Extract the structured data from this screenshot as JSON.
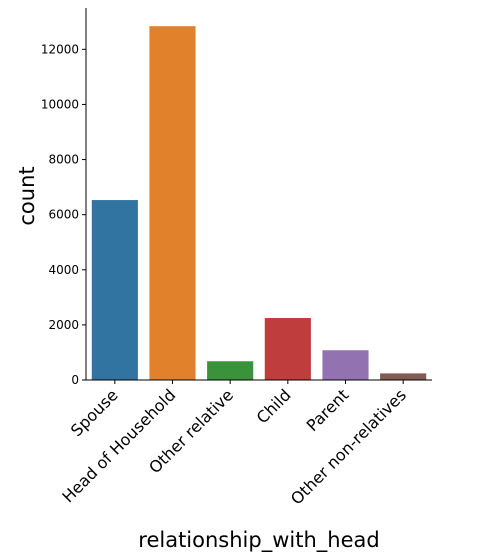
{
  "chart_data": {
    "type": "bar",
    "categories": [
      "Spouse",
      "Head of Household",
      "Other relative",
      "Child",
      "Parent",
      "Other non-relatives"
    ],
    "values": [
      6530,
      12840,
      680,
      2250,
      1080,
      240
    ],
    "colors": [
      "#3274a1",
      "#e1812c",
      "#3a923a",
      "#c03d3e",
      "#9372b2",
      "#845b53"
    ],
    "title": "",
    "xlabel": "relationship_with_head",
    "ylabel": "count",
    "ylim": [
      0,
      13500
    ],
    "yticks": [
      0,
      2000,
      4000,
      6000,
      8000,
      10000,
      12000
    ],
    "grid": false,
    "legend": "none"
  }
}
